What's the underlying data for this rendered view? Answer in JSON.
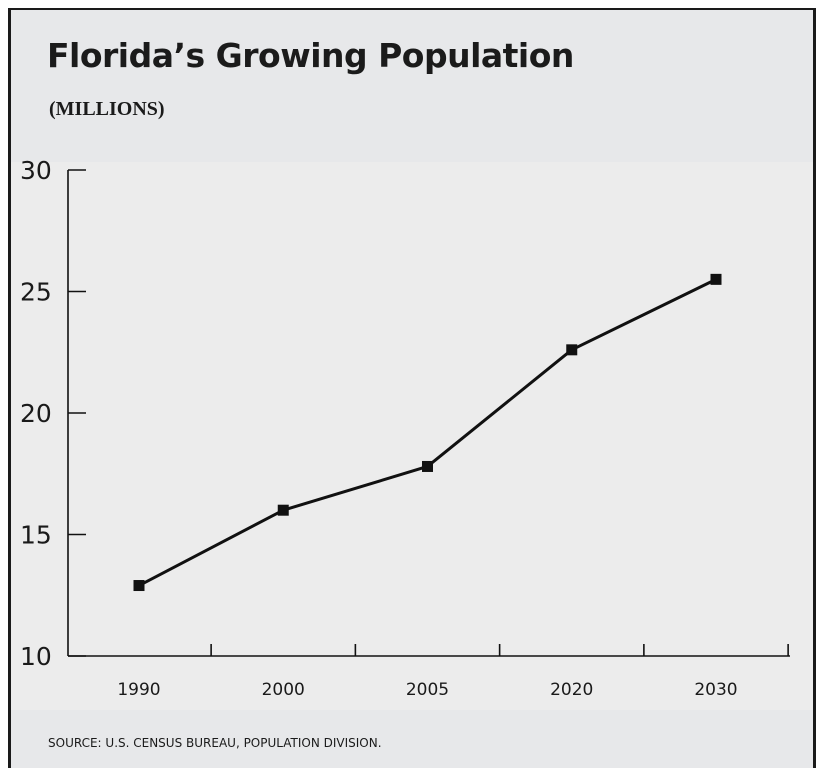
{
  "chart_data": {
    "type": "line",
    "title": "Florida’s Growing Population",
    "subtitle": "(MILLIONS)",
    "categories": [
      "1990",
      "2000",
      "2005",
      "2020",
      "2030"
    ],
    "series": [
      {
        "values": [
          12.9,
          16.0,
          17.8,
          22.6,
          25.5
        ]
      }
    ],
    "ylim": [
      10,
      30
    ],
    "yticks": [
      "10",
      "15",
      "20",
      "25",
      "30"
    ],
    "grid": false,
    "legend": "none",
    "source": "SOURCE: U.S. CENSUS BUREAU, POPULATION DIVISION.",
    "colors": {
      "background": "#e7e8ea",
      "plot_background": "#ececec",
      "line": "#111111",
      "text": "#1b1b1b"
    }
  }
}
